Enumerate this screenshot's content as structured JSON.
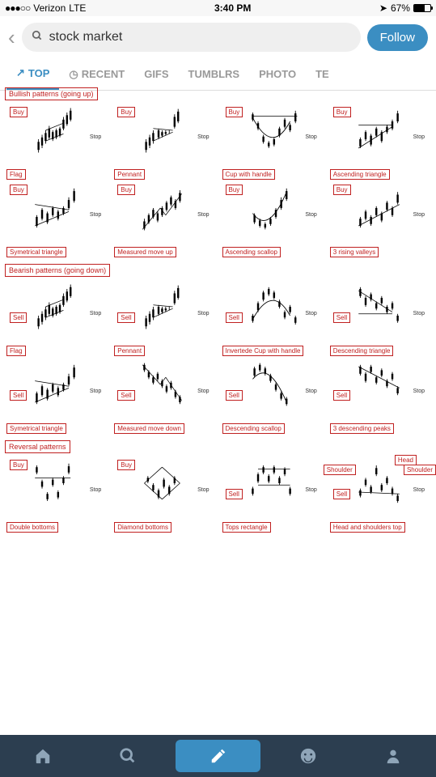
{
  "statusbar": {
    "carrier": "Verizon",
    "network": "LTE",
    "time": "3:40 PM",
    "battery": "67%"
  },
  "search": {
    "query": "stock market",
    "follow": "Follow"
  },
  "tabs": [
    "TOP",
    "RECENT",
    "GIFS",
    "TUMBLRS",
    "PHOTO",
    "TE"
  ],
  "active_tab": 0,
  "colors": {
    "accent": "#3b8ec2",
    "outline": "#c02020",
    "bottombar": "#2c3e50"
  },
  "sections": [
    {
      "title": "Bullish patterns (going up)",
      "action": "Buy",
      "patterns": [
        {
          "name": "Flag",
          "buy_pos": "tl"
        },
        {
          "name": "Pennant",
          "buy_pos": "tr"
        },
        {
          "name": "Cup with handle",
          "buy_pos": "t"
        },
        {
          "name": "Ascending triangle",
          "buy_pos": "tr"
        },
        {
          "name": "Symetrical triangle",
          "buy_pos": "tl"
        },
        {
          "name": "Measured move up",
          "buy_pos": "tl"
        },
        {
          "name": "Ascending scallop",
          "buy_pos": "tl"
        },
        {
          "name": "3 rising valleys",
          "buy_pos": "tr"
        }
      ]
    },
    {
      "title": "Bearish patterns (going down)",
      "action": "Sell",
      "patterns": [
        {
          "name": "Flag"
        },
        {
          "name": "Pennant"
        },
        {
          "name": "Invertede Cup with handle"
        },
        {
          "name": "Descending triangle"
        },
        {
          "name": "Symetrical triangle"
        },
        {
          "name": "Measured move down"
        },
        {
          "name": "Descending scallop"
        },
        {
          "name": "3 descending peaks"
        }
      ]
    },
    {
      "title": "Reversal patterns",
      "action": "mixed",
      "patterns": [
        {
          "name": "Double bottoms",
          "action": "Buy"
        },
        {
          "name": "Diamond bottoms",
          "action": "Buy"
        },
        {
          "name": "Tops rectangle",
          "action": "Sell"
        },
        {
          "name": "Head and shoulders top",
          "action": "Sell",
          "extra": [
            "Head",
            "Shoulder",
            "Shoulder"
          ]
        }
      ]
    }
  ],
  "stop_label": "Stop",
  "charts_style": {
    "stroke": "#000",
    "stroke_width": 1,
    "candle_width": 2
  }
}
